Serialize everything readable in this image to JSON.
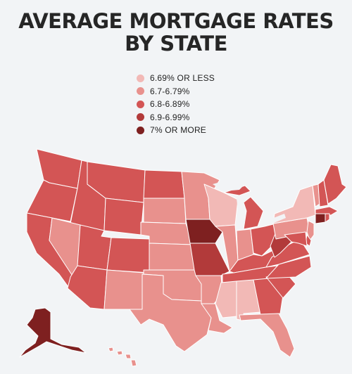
{
  "title": {
    "line1": "AVERAGE MORTGAGE RATES",
    "line2": "BY STATE"
  },
  "colors": {
    "background": "#f2f4f6",
    "lake": "#f2f4f6",
    "text": "#262626"
  },
  "legend": [
    {
      "label": "6.69% OR LESS",
      "color": "#f2b9b6"
    },
    {
      "label": "6.7-6.79%",
      "color": "#e8918d"
    },
    {
      "label": "6.8-6.89%",
      "color": "#d35555"
    },
    {
      "label": "6.9-6.99%",
      "color": "#b23a3a"
    },
    {
      "label": "7% OR MORE",
      "color": "#7e2020"
    }
  ],
  "states": {
    "WA": 2,
    "OR": 2,
    "CA": 2,
    "ID": 2,
    "NV": 1,
    "MT": 2,
    "WY": 2,
    "UT": 2,
    "AZ": 2,
    "CO": 2,
    "NM": 1,
    "ND": 2,
    "SD": 1,
    "NE": 1,
    "KS": 1,
    "OK": 1,
    "TX": 1,
    "MN": 1,
    "IA": 4,
    "MO": 3,
    "AR": 1,
    "LA": 1,
    "WI": 0,
    "IL": 1,
    "MI": 2,
    "IN": 1,
    "OH": 2,
    "KY": 2,
    "TN": 2,
    "MS": 0,
    "AL": 0,
    "GA": 2,
    "FL": 1,
    "SC": 2,
    "NC": 2,
    "VA": 2,
    "WV": 3,
    "PA": 1,
    "NY": 0,
    "VT": 1,
    "NH": 2,
    "ME": 2,
    "MA": 2,
    "CT": 4,
    "RI": 2,
    "NJ": 1,
    "DE": 2,
    "MD": 2,
    "AK": 4,
    "HI": 1
  }
}
